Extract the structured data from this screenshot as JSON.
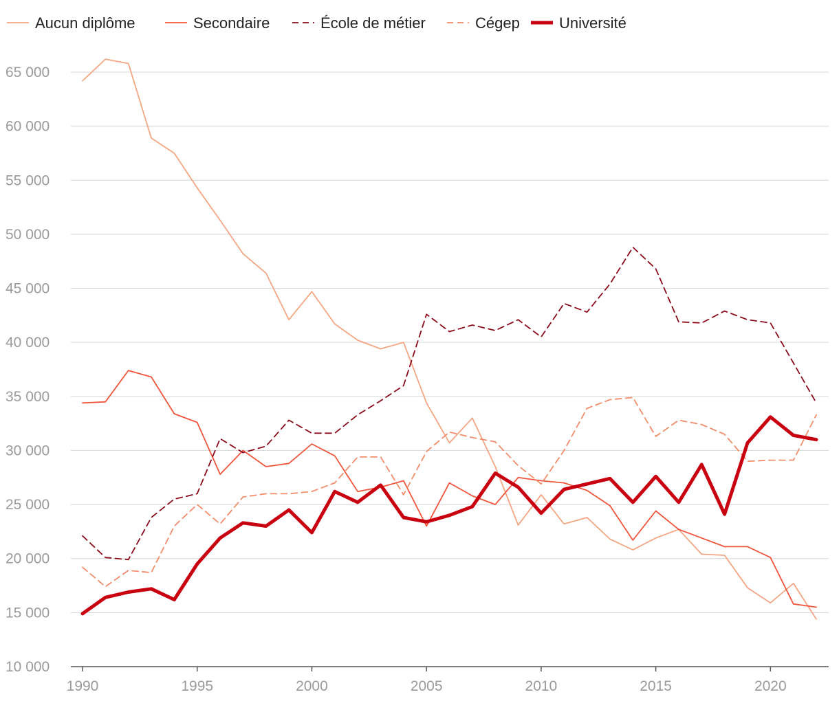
{
  "chart_data": {
    "type": "line",
    "title": "",
    "xlabel": "",
    "ylabel": "",
    "x": [
      1990,
      1991,
      1992,
      1993,
      1994,
      1995,
      1996,
      1997,
      1998,
      1999,
      2000,
      2001,
      2002,
      2003,
      2004,
      2005,
      2006,
      2007,
      2008,
      2009,
      2010,
      2011,
      2012,
      2013,
      2014,
      2015,
      2016,
      2017,
      2018,
      2019,
      2020,
      2021,
      2022
    ],
    "xlim": [
      1990,
      2022.5
    ],
    "ylim": [
      10000,
      67000
    ],
    "x_ticks": [
      1990,
      1995,
      2000,
      2005,
      2010,
      2015,
      2020
    ],
    "x_tick_labels": [
      "1990",
      "1995",
      "2000",
      "2005",
      "2010",
      "2015",
      "2020"
    ],
    "y_ticks": [
      10000,
      15000,
      20000,
      25000,
      30000,
      35000,
      40000,
      45000,
      50000,
      55000,
      60000,
      65000
    ],
    "y_tick_labels": [
      "10 000",
      "15 000",
      "20 000",
      "25 000",
      "30 000",
      "35 000",
      "40 000",
      "45 000",
      "50 000",
      "55 000",
      "60 000",
      "65 000"
    ],
    "grid": true,
    "legend_position": "top-left",
    "series": [
      {
        "name": "Aucun diplôme",
        "color": "#f4a582",
        "style": "solid",
        "weight": "thin",
        "values": [
          64200,
          66200,
          65800,
          58900,
          57500,
          54300,
          51300,
          48200,
          46400,
          42100,
          44700,
          41700,
          40200,
          39400,
          40000,
          34400,
          30700,
          33000,
          28500,
          23100,
          25900,
          23200,
          23800,
          21800,
          20800,
          21900,
          22700,
          20400,
          20300,
          17300,
          15900,
          17700,
          14400
        ]
      },
      {
        "name": "Secondaire",
        "color": "#ef553b",
        "style": "solid",
        "weight": "thin",
        "values": [
          34400,
          34500,
          37400,
          36800,
          33400,
          32600,
          27800,
          30000,
          28500,
          28800,
          30600,
          29500,
          26200,
          26600,
          27200,
          23000,
          27000,
          25800,
          25000,
          27500,
          27200,
          27000,
          26300,
          24900,
          21700,
          24400,
          22700,
          21900,
          21100,
          21100,
          20100,
          15800,
          15500
        ]
      },
      {
        "name": "École de métier",
        "color": "#8b0a1a",
        "style": "dashed",
        "weight": "thin",
        "values": [
          22100,
          20100,
          19900,
          23800,
          25500,
          26000,
          31100,
          29800,
          30400,
          32800,
          31600,
          31600,
          33300,
          34600,
          36000,
          42600,
          41000,
          41600,
          41100,
          42100,
          40500,
          43600,
          42800,
          45400,
          48800,
          46800,
          41900,
          41800,
          42900,
          42100,
          41800,
          38100,
          34400
        ]
      },
      {
        "name": "Cégep",
        "color": "#f28c6a",
        "style": "dashed",
        "weight": "thin",
        "values": [
          19200,
          17400,
          18900,
          18700,
          23000,
          25000,
          23200,
          25700,
          26000,
          26000,
          26200,
          27000,
          29400,
          29400,
          25900,
          29900,
          31700,
          31200,
          30800,
          28600,
          26900,
          30000,
          33900,
          34700,
          34900,
          31300,
          32800,
          32400,
          31500,
          29000,
          29100,
          29100,
          33300
        ]
      },
      {
        "name": "Université",
        "color": "#c8000f",
        "style": "solid",
        "weight": "thick",
        "values": [
          14900,
          16400,
          16900,
          17200,
          16200,
          19500,
          21900,
          23300,
          23000,
          24500,
          22400,
          26200,
          25200,
          26800,
          23800,
          23400,
          24000,
          24800,
          27900,
          26600,
          24200,
          26400,
          26900,
          27400,
          25200,
          27600,
          25200,
          28700,
          24100,
          30700,
          33100,
          31400,
          31000
        ]
      }
    ]
  }
}
